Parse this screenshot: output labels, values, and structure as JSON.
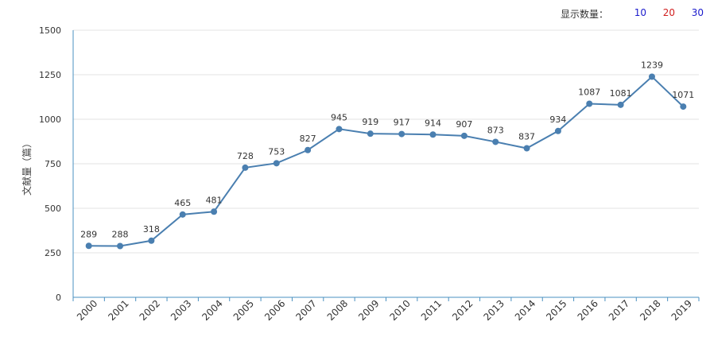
{
  "controls": {
    "show_count_label": "显示数量：",
    "options": [
      {
        "label": "10",
        "color": "#1a1acc"
      },
      {
        "label": "20",
        "color": "#d12020"
      },
      {
        "label": "30",
        "color": "#1a1acc"
      }
    ]
  },
  "chart_data": {
    "type": "line",
    "title": "",
    "xlabel": "",
    "ylabel": "文献量（篇）",
    "ylim": [
      0,
      1500
    ],
    "yticks": [
      0,
      250,
      500,
      750,
      1000,
      1250,
      1500
    ],
    "grid": true,
    "line_color": "#4a7fb0",
    "categories": [
      "2000",
      "2001",
      "2002",
      "2003",
      "2004",
      "2005",
      "2006",
      "2007",
      "2008",
      "2009",
      "2010",
      "2011",
      "2012",
      "2013",
      "2014",
      "2015",
      "2016",
      "2017",
      "2018",
      "2019"
    ],
    "values": [
      289,
      288,
      318,
      465,
      481,
      728,
      753,
      827,
      945,
      919,
      917,
      914,
      907,
      873,
      837,
      934,
      1087,
      1081,
      1239,
      1071
    ]
  }
}
